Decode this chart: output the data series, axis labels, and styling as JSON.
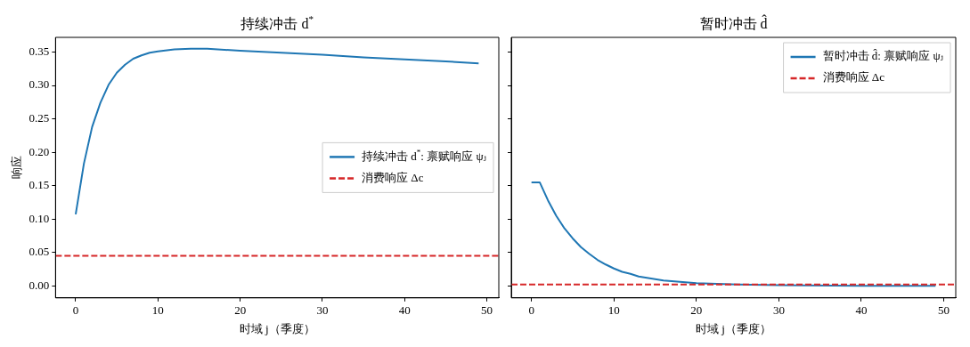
{
  "chart_data": [
    {
      "type": "line",
      "title": "持续冲击 d$^{*}$",
      "xlabel": "时域 j（季度）",
      "ylabel": "响应",
      "legend": "center right",
      "series": [
        {
          "name": "持续冲击 d$^{*}$: 禀赋响应 ψⱼ",
          "color": "#1f77b4",
          "x": [
            0,
            1,
            2,
            3,
            4,
            5,
            6,
            7,
            8,
            9,
            10,
            12,
            14,
            16,
            20,
            25,
            30,
            35,
            40,
            45,
            49
          ],
          "values": [
            0.107,
            0.183,
            0.238,
            0.274,
            0.301,
            0.319,
            0.331,
            0.34,
            0.345,
            0.349,
            0.351,
            0.354,
            0.355,
            0.355,
            0.352,
            0.349,
            0.346,
            0.342,
            0.339,
            0.336,
            0.333
          ]
        }
      ],
      "ref_lines": [
        {
          "axis": "y",
          "value": 0.045,
          "label": "消费响应 Δc",
          "color": "#d62728",
          "line_style": "dashed"
        }
      ],
      "xlim": [
        -2.45,
        51.45
      ],
      "xticks": [
        0,
        10,
        20,
        30,
        40,
        50
      ],
      "ylim": [
        -0.018,
        0.372
      ],
      "yticks": [
        {
          "value": 0,
          "label": "0.00"
        },
        {
          "value": 0.05,
          "label": "0.05"
        },
        {
          "value": 0.1,
          "label": "0.10"
        },
        {
          "value": 0.15,
          "label": "0.15"
        },
        {
          "value": 0.2,
          "label": "0.20"
        },
        {
          "value": 0.25,
          "label": "0.25"
        },
        {
          "value": 0.3,
          "label": "0.30"
        },
        {
          "value": 0.35,
          "label": "0.35"
        }
      ]
    },
    {
      "type": "line",
      "title": "暂时冲击 d̂",
      "xlabel": "时域 j（季度）",
      "legend": "top right",
      "tick_labels": "x",
      "series": [
        {
          "name": "暂时冲击 d̂: 禀赋响应 ψⱼ",
          "color": "#1f77b4",
          "x": [
            0,
            1,
            2,
            3,
            4,
            5,
            6,
            7,
            8,
            9,
            10,
            11,
            12,
            13,
            14,
            15,
            16,
            17,
            18,
            19,
            20,
            25,
            30,
            40,
            49
          ],
          "values": [
            0.155,
            0.155,
            0.128,
            0.105,
            0.086,
            0.071,
            0.058,
            0.048,
            0.039,
            0.032,
            0.026,
            0.021,
            0.018,
            0.014,
            0.012,
            0.01,
            0.008,
            0.007,
            0.006,
            0.005,
            0.004,
            0.002,
            0.001,
            0,
            0
          ]
        }
      ],
      "ref_lines": [
        {
          "axis": "y",
          "value": 0.002,
          "label": "消费响应 Δc",
          "color": "#d62728",
          "line_style": "dashed"
        }
      ],
      "xlim": [
        -2.45,
        51.45
      ],
      "xticks": [
        0,
        10,
        20,
        30,
        40,
        50
      ],
      "ylim": [
        -0.018,
        0.372
      ],
      "yticks": [
        {
          "value": 0,
          "label": null
        },
        {
          "value": 0.05,
          "label": null
        },
        {
          "value": 0.1,
          "label": null
        },
        {
          "value": 0.15,
          "label": null
        },
        {
          "value": 0.2,
          "label": null
        },
        {
          "value": 0.25,
          "label": null
        },
        {
          "value": 0.3,
          "label": null
        },
        {
          "value": 0.35,
          "label": null
        }
      ]
    }
  ]
}
